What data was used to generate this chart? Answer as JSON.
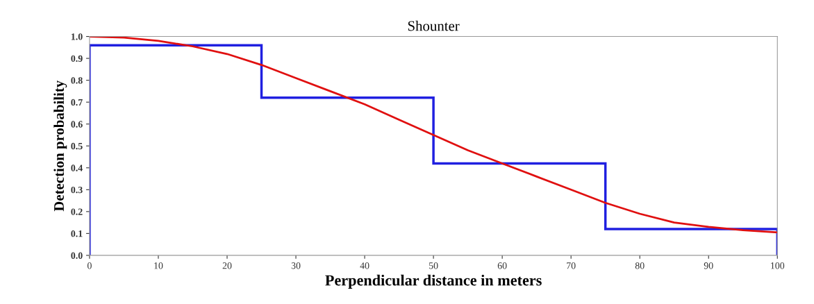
{
  "chart_data": {
    "type": "histogram",
    "title": "Shounter",
    "xlabel": "Perpendicular distance in meters",
    "ylabel": "Detection probability",
    "xlim": [
      0,
      100
    ],
    "xticks": [
      0,
      10,
      20,
      30,
      40,
      50,
      60,
      70,
      80,
      90,
      100
    ],
    "ylim": [
      0,
      1.0
    ],
    "yticks": [
      {
        "value": 0,
        "label": "0.0"
      },
      {
        "value": 0.1,
        "label": "0.1"
      },
      {
        "value": 0.2,
        "label": "0.2"
      },
      {
        "value": 0.3,
        "label": "0.3"
      },
      {
        "value": 0.4,
        "label": "0.4"
      },
      {
        "value": 0.5,
        "label": "0.5"
      },
      {
        "value": 0.6,
        "label": "0.6"
      },
      {
        "value": 0.7,
        "label": "0.7"
      },
      {
        "value": 0.8,
        "label": "0.8"
      },
      {
        "value": 0.9,
        "label": "0.9"
      },
      {
        "value": 1.0,
        "label": "1.0"
      }
    ],
    "grid": false,
    "series": [
      {
        "color": "#2020e0",
        "bins": [
          0,
          25,
          50,
          75,
          100
        ],
        "values": [
          0.96,
          0.72,
          0.42,
          0.12
        ]
      },
      {
        "type": "line",
        "color": "#e01010",
        "x": [
          0,
          5,
          10,
          15,
          20,
          25,
          30,
          35,
          40,
          45,
          50,
          55,
          60,
          65,
          70,
          75,
          80,
          85,
          90,
          95,
          100
        ],
        "values": [
          1.0,
          0.995,
          0.98,
          0.955,
          0.92,
          0.87,
          0.81,
          0.75,
          0.69,
          0.62,
          0.55,
          0.48,
          0.42,
          0.36,
          0.3,
          0.24,
          0.19,
          0.15,
          0.13,
          0.115,
          0.105
        ]
      }
    ]
  }
}
